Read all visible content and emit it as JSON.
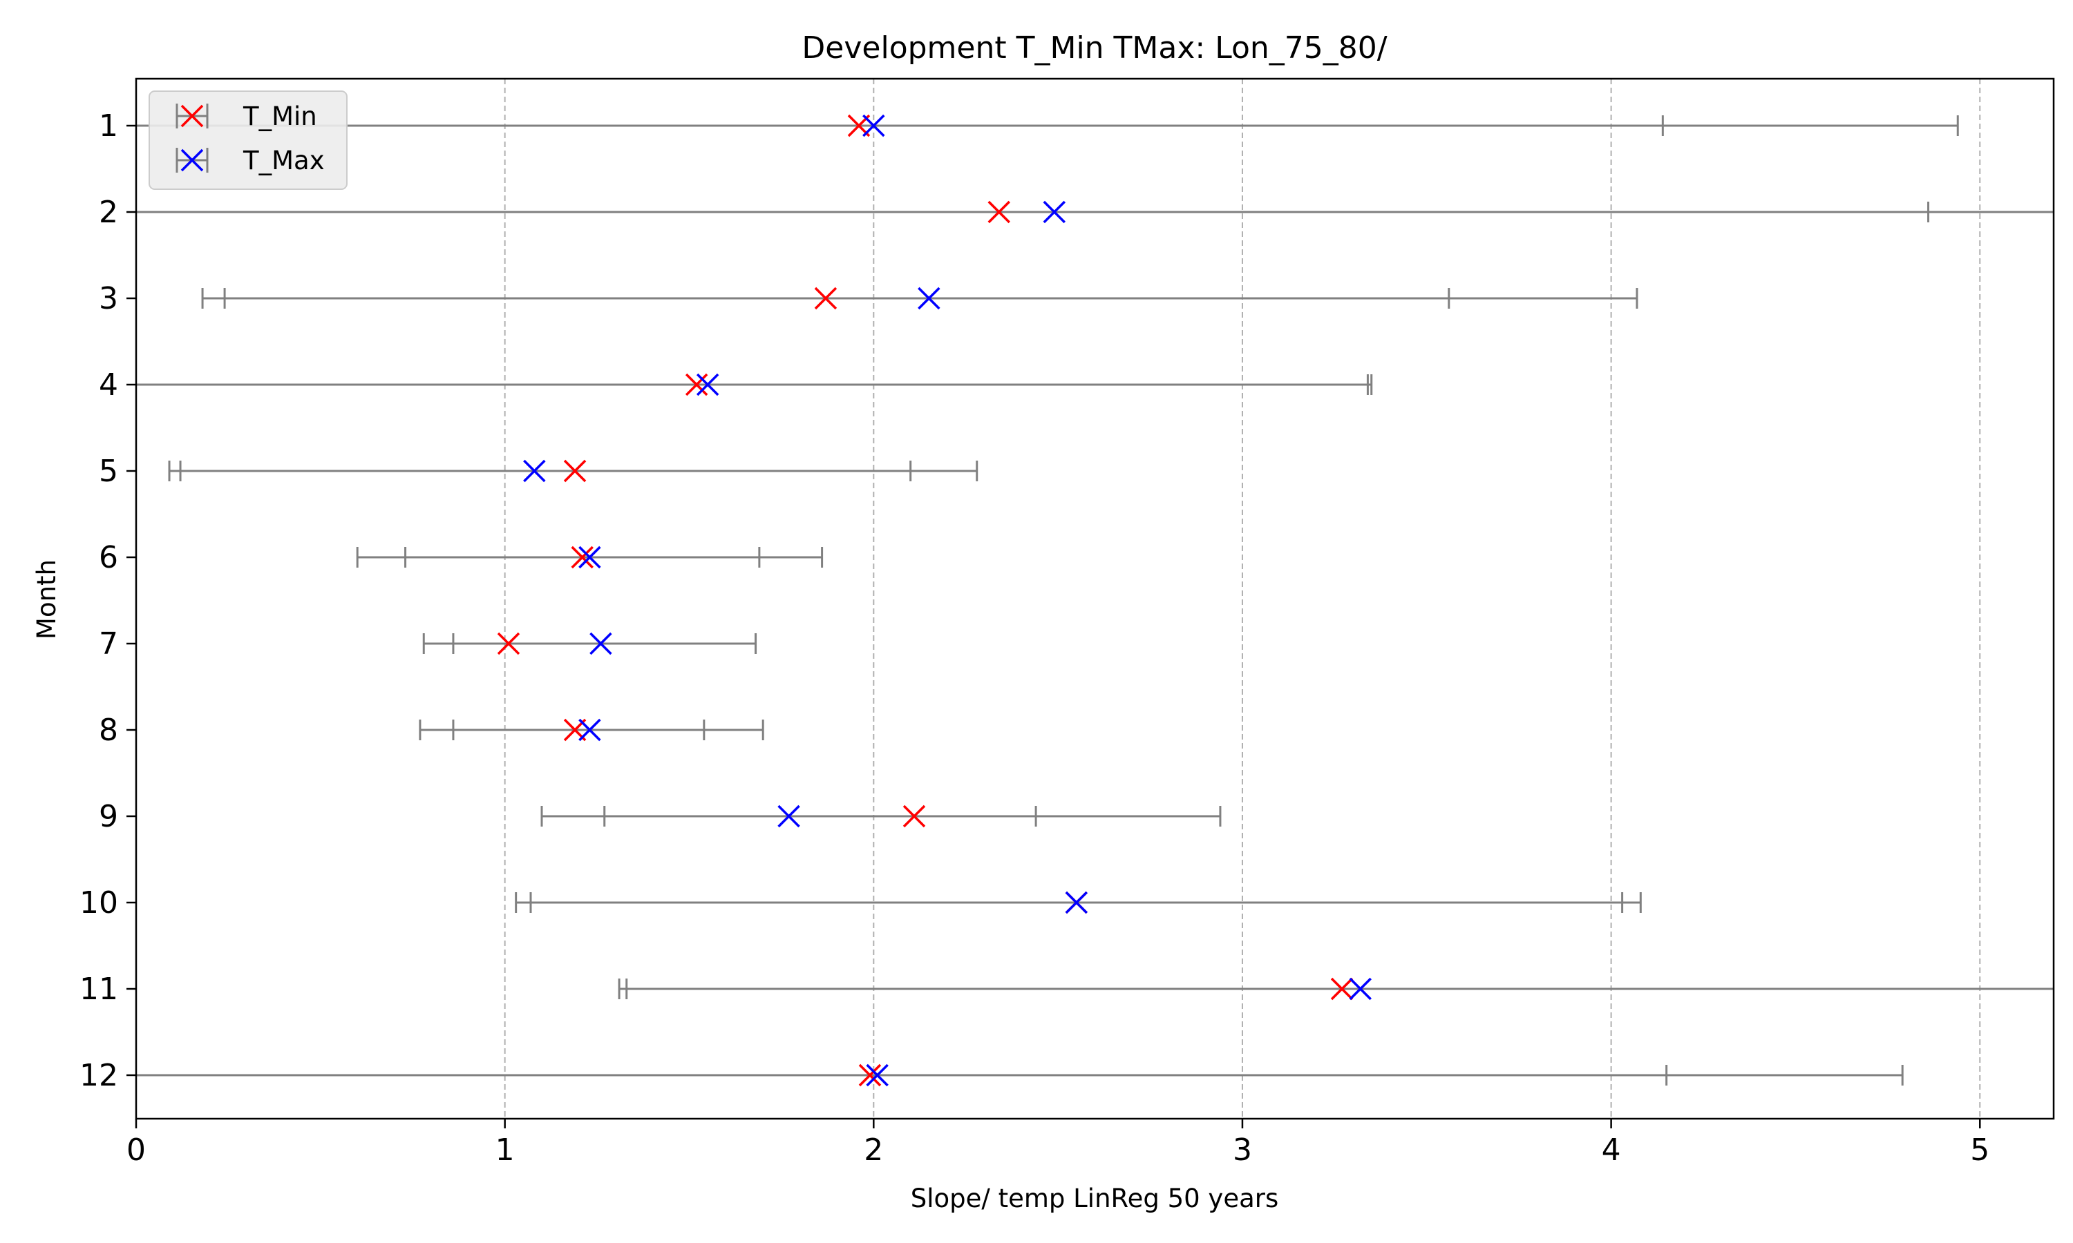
{
  "chart_data": {
    "type": "scatter",
    "title": "Development T_Min TMax: Lon_75_80/",
    "xlabel": "Slope/ temp LinReg 50 years",
    "ylabel": "Month",
    "xlim": [
      0,
      5.2
    ],
    "xticks": [
      0,
      1,
      2,
      3,
      4,
      5
    ],
    "grid": "x-dashed",
    "legend_position": "top-left",
    "categories": [
      "1",
      "2",
      "3",
      "4",
      "5",
      "6",
      "7",
      "8",
      "9",
      "10",
      "11",
      "12"
    ],
    "series": [
      {
        "name": "T_Min",
        "color": "#ff0000",
        "values": [
          1.96,
          2.34,
          1.87,
          1.52,
          1.19,
          1.21,
          1.01,
          1.19,
          2.11,
          2.55,
          3.27,
          1.99
        ],
        "lower": [
          0.0,
          0.0,
          0.18,
          0.0,
          0.09,
          0.6,
          0.78,
          0.77,
          1.1,
          1.03,
          1.31,
          0.0
        ],
        "upper": [
          4.14,
          4.86,
          3.56,
          3.34,
          2.1,
          1.69,
          1.68,
          1.54,
          2.44,
          4.03,
          5.3,
          4.15
        ]
      },
      {
        "name": "T_Max",
        "color": "#0000ff",
        "values": [
          2.0,
          2.49,
          2.15,
          1.55,
          1.08,
          1.23,
          1.26,
          1.23,
          1.77,
          2.55,
          3.32,
          2.01
        ],
        "lower": [
          0.0,
          0.0,
          0.24,
          0.0,
          0.12,
          0.73,
          0.86,
          0.86,
          1.27,
          1.07,
          1.33,
          0.0
        ],
        "upper": [
          4.94,
          5.3,
          4.07,
          3.35,
          2.28,
          1.86,
          1.68,
          1.7,
          2.94,
          4.08,
          5.3,
          4.79
        ]
      }
    ]
  }
}
